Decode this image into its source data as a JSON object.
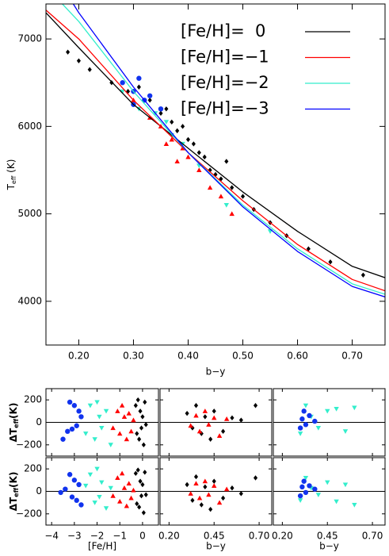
{
  "chart_data": [
    {
      "type": "line",
      "xlabel": "b−y",
      "ylabel": {
        "main": "T",
        "sub": "eff",
        "unit": " (K)"
      },
      "xlim": [
        0.14,
        0.76
      ],
      "ylim": [
        3500,
        7400
      ],
      "xticks": [
        {
          "value": 0.2,
          "label": "0.20"
        },
        {
          "value": 0.3,
          "label": "0.30"
        },
        {
          "value": 0.4,
          "label": "0.40"
        },
        {
          "value": 0.5,
          "label": "0.50"
        },
        {
          "value": 0.6,
          "label": "0.60"
        },
        {
          "value": 0.7,
          "label": "0.70"
        }
      ],
      "yticks": [
        4000,
        5000,
        6000,
        7000
      ],
      "series": [
        {
          "name": "[Fe/H]=  0",
          "color": "#000000",
          "x": [
            0.14,
            0.2,
            0.3,
            0.4,
            0.5,
            0.6,
            0.7,
            0.76
          ],
          "values": [
            7300,
            6900,
            6250,
            5750,
            5250,
            4800,
            4400,
            4270
          ]
        },
        {
          "name": "[Fe/H]=−1",
          "color": "#ff0000",
          "x": [
            0.14,
            0.2,
            0.3,
            0.4,
            0.5,
            0.6,
            0.7,
            0.76
          ],
          "values": [
            7330,
            7000,
            6300,
            5700,
            5150,
            4650,
            4250,
            4120
          ]
        },
        {
          "name": "[Fe/H]=−2",
          "color": "#33eecc",
          "x": [
            0.17,
            0.2,
            0.3,
            0.4,
            0.5,
            0.6,
            0.7,
            0.76
          ],
          "values": [
            7400,
            7200,
            6400,
            5700,
            5100,
            4600,
            4200,
            4080
          ]
        },
        {
          "name": "[Fe/H]=−3",
          "color": "#0000ff",
          "x": [
            0.19,
            0.2,
            0.3,
            0.4,
            0.5,
            0.6,
            0.7,
            0.76
          ],
          "values": [
            7400,
            7300,
            6450,
            5700,
            5080,
            4570,
            4170,
            4050
          ]
        }
      ],
      "points": [
        {
          "color": "#000000",
          "marker": "diamond",
          "x": [
            0.18,
            0.2,
            0.22,
            0.26,
            0.29,
            0.31,
            0.33,
            0.35,
            0.37,
            0.38,
            0.4,
            0.41,
            0.42,
            0.43,
            0.44,
            0.45,
            0.46,
            0.48,
            0.5,
            0.52,
            0.55,
            0.58,
            0.62,
            0.66,
            0.72,
            0.47,
            0.39,
            0.36
          ],
          "values": [
            6850,
            6750,
            6650,
            6500,
            6400,
            6450,
            6300,
            6150,
            6050,
            5950,
            5850,
            5800,
            5700,
            5650,
            5500,
            5450,
            5400,
            5300,
            5200,
            5050,
            4900,
            4750,
            4600,
            4450,
            4300,
            5600,
            6000,
            6200
          ]
        },
        {
          "color": "#ff0000",
          "marker": "triangle",
          "x": [
            0.3,
            0.33,
            0.35,
            0.37,
            0.39,
            0.4,
            0.42,
            0.44,
            0.46,
            0.38,
            0.36,
            0.48
          ],
          "values": [
            6300,
            6100,
            6000,
            5850,
            5750,
            5650,
            5500,
            5300,
            5200,
            5600,
            5800,
            5000
          ]
        },
        {
          "color": "#33eecc",
          "marker": "down",
          "x": [
            0.28,
            0.31,
            0.34,
            0.36,
            0.37,
            0.39,
            0.42,
            0.47,
            0.55
          ],
          "values": [
            6400,
            6200,
            6150,
            6050,
            5900,
            5800,
            5550,
            5100,
            4800
          ]
        },
        {
          "color": "#1133ee",
          "marker": "circle",
          "x": [
            0.28,
            0.3,
            0.31,
            0.32,
            0.33,
            0.35,
            0.3
          ],
          "values": [
            6500,
            6400,
            6550,
            6300,
            6350,
            6200,
            6250
          ]
        }
      ]
    },
    {
      "type": "scatter",
      "ylabel": {
        "main": "ΔT",
        "sub": "eff",
        "unit": "(K)"
      },
      "xlim": [
        -4.25,
        0.7
      ],
      "ylim": [
        -300,
        300
      ],
      "xticks": [
        -4,
        -3,
        -2,
        -1,
        0
      ],
      "yticks": [
        {
          "value": -200,
          "label": "−200"
        },
        0,
        200
      ],
      "hline": 0,
      "points": [
        {
          "color": "#1133ee",
          "marker": "circle",
          "x": [
            -3.5,
            -3.3,
            -3.2,
            -3.1,
            -3.0,
            -2.9,
            -2.8,
            -2.7
          ],
          "values": [
            -150,
            -80,
            180,
            -60,
            150,
            -30,
            100,
            50
          ]
        },
        {
          "color": "#33eecc",
          "marker": "down",
          "x": [
            -2.5,
            -2.3,
            -2.1,
            -2.0,
            -1.9,
            -1.8,
            -1.6,
            -1.4
          ],
          "values": [
            -100,
            150,
            -150,
            180,
            50,
            -50,
            100,
            -200
          ]
        },
        {
          "color": "#ff0000",
          "marker": "triangle",
          "x": [
            -1.3,
            -1.1,
            -1.0,
            -0.9,
            -0.8,
            -0.7,
            -0.6,
            -0.5,
            -0.4
          ],
          "values": [
            -50,
            100,
            -100,
            150,
            50,
            -150,
            80,
            -80,
            20
          ]
        },
        {
          "color": "#000000",
          "marker": "diamond",
          "x": [
            -0.3,
            -0.25,
            -0.2,
            -0.15,
            -0.1,
            -0.05,
            0,
            0.05,
            0.1,
            0.15
          ],
          "values": [
            150,
            -100,
            200,
            -150,
            100,
            -50,
            50,
            -200,
            180,
            -20
          ]
        }
      ]
    },
    {
      "type": "scatter",
      "xlim": [
        0.15,
        0.77
      ],
      "ylim": [
        -300,
        300
      ],
      "xticks": [
        0.2,
        0.45,
        0.7
      ],
      "yticks": [
        -200,
        0,
        200
      ],
      "hline": 0,
      "points": [
        {
          "color": "#000000",
          "marker": "diamond",
          "x": [
            0.3,
            0.33,
            0.35,
            0.38,
            0.4,
            0.43,
            0.45,
            0.5,
            0.55,
            0.6,
            0.68
          ],
          "values": [
            80,
            -50,
            150,
            -100,
            50,
            -150,
            100,
            -80,
            40,
            20,
            150
          ]
        },
        {
          "color": "#ff0000",
          "marker": "triangle",
          "x": [
            0.32,
            0.35,
            0.37,
            0.4,
            0.42,
            0.45,
            0.48,
            0.52
          ],
          "values": [
            -30,
            60,
            -80,
            100,
            -20,
            40,
            -120,
            30
          ]
        }
      ]
    },
    {
      "type": "scatter",
      "xlim": [
        0.15,
        0.77
      ],
      "ylim": [
        -300,
        300
      ],
      "xticks": [
        0.2,
        0.45,
        0.7
      ],
      "yticks": [
        -200,
        0,
        200
      ],
      "hline": 0,
      "points": [
        {
          "color": "#33eecc",
          "marker": "down",
          "x": [
            0.3,
            0.33,
            0.36,
            0.4,
            0.45,
            0.5,
            0.55,
            0.6
          ],
          "values": [
            -100,
            150,
            50,
            -50,
            100,
            120,
            -80,
            130
          ]
        },
        {
          "color": "#1133ee",
          "marker": "circle",
          "x": [
            0.3,
            0.31,
            0.32,
            0.33,
            0.35,
            0.38
          ],
          "values": [
            -50,
            30,
            100,
            -20,
            60,
            10
          ]
        }
      ]
    },
    {
      "type": "scatter",
      "xlabel": "[Fe/H]",
      "ylabel": {
        "main": "ΔT",
        "sub": "eff",
        "unit": "(K)"
      },
      "xlim": [
        -4.25,
        0.7
      ],
      "ylim": [
        -300,
        300
      ],
      "xticks": [
        {
          "value": -4,
          "label": "−4"
        },
        {
          "value": -3,
          "label": "−3"
        },
        {
          "value": -2,
          "label": "−2"
        },
        {
          "value": -1,
          "label": "−1"
        },
        0
      ],
      "yticks": [
        {
          "value": -200,
          "label": "−200"
        },
        0,
        200
      ],
      "hline": 0,
      "points": [
        {
          "color": "#1133ee",
          "marker": "circle",
          "x": [
            -3.6,
            -3.4,
            -3.2,
            -3.1,
            -3.0,
            -2.9,
            -2.8,
            -2.7
          ],
          "values": [
            -10,
            20,
            150,
            -50,
            100,
            -80,
            60,
            -120
          ]
        },
        {
          "color": "#33eecc",
          "marker": "down",
          "x": [
            -2.5,
            -2.3,
            -2.1,
            -2.0,
            -1.9,
            -1.8,
            -1.6,
            -1.4
          ],
          "values": [
            50,
            150,
            -100,
            200,
            -50,
            80,
            -150,
            30
          ]
        },
        {
          "color": "#ff0000",
          "marker": "triangle",
          "x": [
            -1.3,
            -1.1,
            -1.0,
            -0.9,
            -0.8,
            -0.7,
            -0.6,
            -0.5,
            -0.4
          ],
          "values": [
            -40,
            120,
            -90,
            160,
            30,
            -130,
            70,
            -60,
            10
          ]
        },
        {
          "color": "#000000",
          "marker": "diamond",
          "x": [
            -0.3,
            -0.25,
            -0.2,
            -0.15,
            -0.1,
            -0.05,
            0,
            0.05,
            0.1,
            0.15
          ],
          "values": [
            160,
            -110,
            190,
            -140,
            90,
            -40,
            60,
            -190,
            170,
            -30
          ]
        }
      ]
    },
    {
      "type": "scatter",
      "xlabel": "b−y",
      "xlim": [
        0.15,
        0.77
      ],
      "ylim": [
        -300,
        300
      ],
      "xticks": [
        {
          "value": 0.2,
          "label": "0.20"
        },
        {
          "value": 0.45,
          "label": "0.45"
        },
        {
          "value": 0.7,
          "label": "0.70"
        }
      ],
      "yticks": [
        -200,
        0,
        200
      ],
      "hline": 0,
      "points": [
        {
          "color": "#000000",
          "marker": "diamond",
          "x": [
            0.3,
            0.33,
            0.35,
            0.38,
            0.4,
            0.43,
            0.45,
            0.5,
            0.55,
            0.6,
            0.68
          ],
          "values": [
            60,
            -80,
            130,
            -120,
            40,
            -160,
            90,
            -60,
            30,
            -20,
            120
          ]
        },
        {
          "color": "#ff0000",
          "marker": "triangle",
          "x": [
            0.32,
            0.35,
            0.37,
            0.4,
            0.42,
            0.45,
            0.48,
            0.52
          ],
          "values": [
            -20,
            70,
            -60,
            90,
            -30,
            50,
            -100,
            20
          ]
        }
      ]
    },
    {
      "type": "scatter",
      "xlabel": "b−y",
      "xlim": [
        0.15,
        0.77
      ],
      "ylim": [
        -300,
        300
      ],
      "xticks": [
        {
          "value": 0.2,
          "label": "0.20"
        },
        {
          "value": 0.45,
          "label": "0.45"
        },
        {
          "value": 0.7,
          "label": "0.70"
        }
      ],
      "yticks": [
        -200,
        0,
        200
      ],
      "hline": 0,
      "points": [
        {
          "color": "#33eecc",
          "marker": "down",
          "x": [
            0.3,
            0.33,
            0.36,
            0.4,
            0.45,
            0.5,
            0.55,
            0.6
          ],
          "values": [
            -80,
            120,
            30,
            -30,
            80,
            -90,
            60,
            -120
          ]
        },
        {
          "color": "#1133ee",
          "marker": "circle",
          "x": [
            0.3,
            0.31,
            0.32,
            0.33,
            0.35,
            0.38
          ],
          "values": [
            -40,
            40,
            90,
            -10,
            50,
            20
          ]
        }
      ]
    }
  ]
}
